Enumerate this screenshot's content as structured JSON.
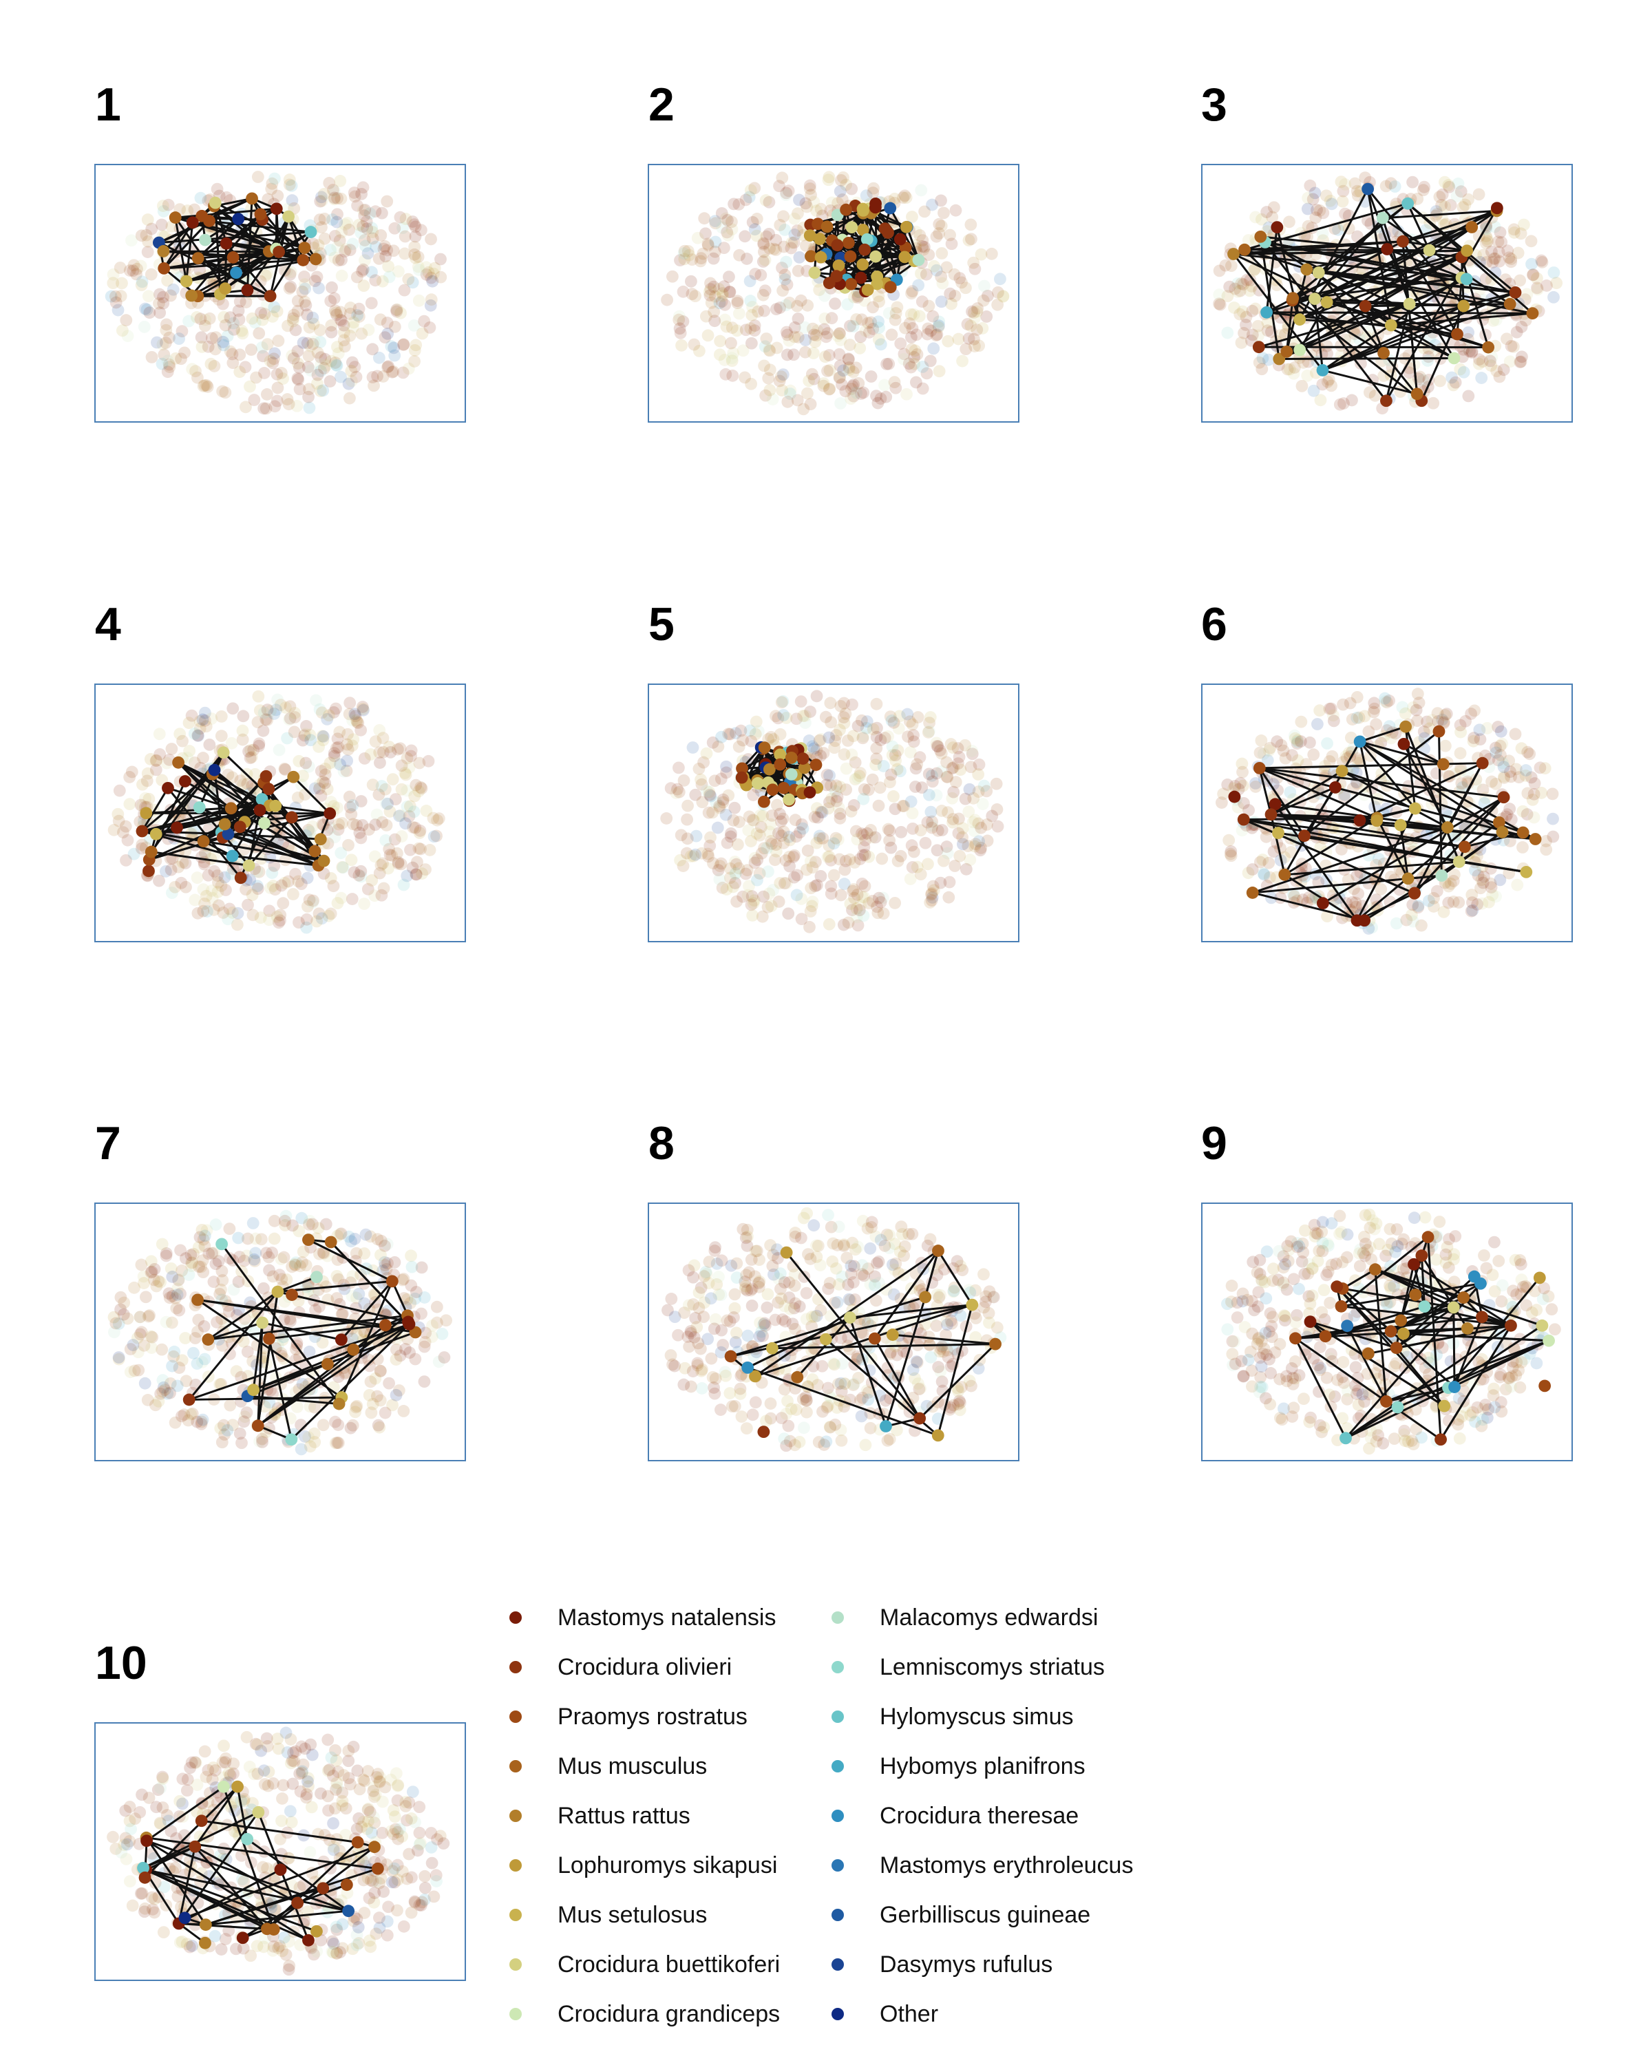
{
  "panels": [
    {
      "label": "1"
    },
    {
      "label": "2"
    },
    {
      "label": "3"
    },
    {
      "label": "4"
    },
    {
      "label": "5"
    },
    {
      "label": "6"
    },
    {
      "label": "7"
    },
    {
      "label": "8"
    },
    {
      "label": "9"
    },
    {
      "label": "10"
    }
  ],
  "legend": {
    "items": [
      {
        "label": "Mastomys natalensis",
        "color": "#7a1c08"
      },
      {
        "label": "Crocidura olivieri",
        "color": "#8e3410"
      },
      {
        "label": "Praomys rostratus",
        "color": "#9e4a14"
      },
      {
        "label": "Mus musculus",
        "color": "#a8621c"
      },
      {
        "label": "Rattus rattus",
        "color": "#b27e2a"
      },
      {
        "label": "Lophuromys sikapusi",
        "color": "#bf9a38"
      },
      {
        "label": "Mus setulosus",
        "color": "#c9b24e"
      },
      {
        "label": "Crocidura buettikoferi",
        "color": "#d4d080"
      },
      {
        "label": "Crocidura grandiceps",
        "color": "#cde8b4"
      },
      {
        "label": "Malacomys edwardsi",
        "color": "#b4e0c8"
      },
      {
        "label": "Lemniscomys striatus",
        "color": "#8ed8cc"
      },
      {
        "label": "Hylomyscus simus",
        "color": "#68c4c8"
      },
      {
        "label": "Hybomys planifrons",
        "color": "#44aac4"
      },
      {
        "label": "Crocidura theresae",
        "color": "#2e8ec0"
      },
      {
        "label": "Mastomys erythroleucus",
        "color": "#2a76b4"
      },
      {
        "label": "Gerbilliscus guineae",
        "color": "#1e5aa2"
      },
      {
        "label": "Dasymys rufulus",
        "color": "#1a4494"
      },
      {
        "label": "Other",
        "color": "#0e2a84"
      }
    ]
  }
}
